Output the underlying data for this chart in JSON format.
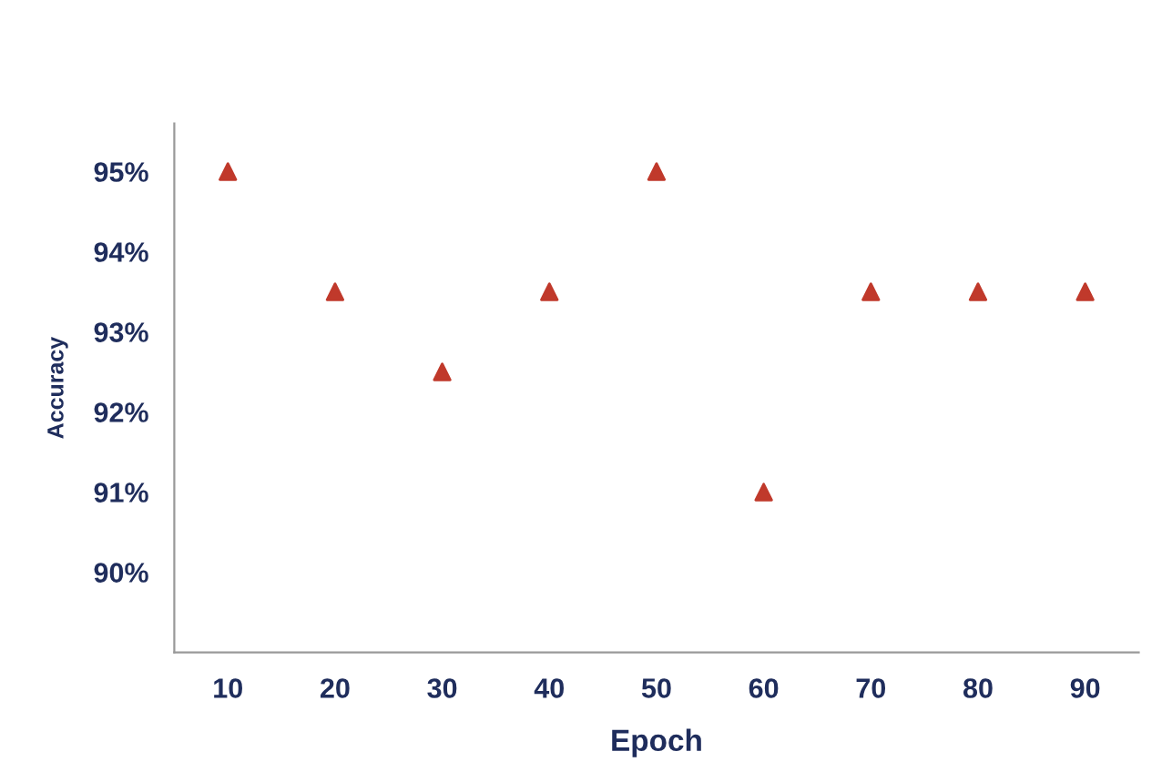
{
  "chart_data": {
    "type": "scatter",
    "xlabel": "Epoch",
    "ylabel": "Accuracy",
    "x": [
      10,
      20,
      30,
      40,
      50,
      60,
      70,
      80,
      90
    ],
    "series": [
      {
        "color": "#c0392b",
        "values": [
          95,
          93.5,
          92.5,
          93.5,
          95,
          91,
          93.5,
          93.5,
          93.5
        ]
      }
    ],
    "xlim": [
      5,
      95
    ],
    "xticks": [
      10,
      20,
      30,
      40,
      50,
      60,
      70,
      80,
      90
    ],
    "ylim": [
      89,
      95.6
    ],
    "yticks": [
      {
        "value": 90,
        "label": "90%"
      },
      {
        "value": 91,
        "label": "91%"
      },
      {
        "value": 92,
        "label": "92%"
      },
      {
        "value": 93,
        "label": "93%"
      },
      {
        "value": 94,
        "label": "94%"
      },
      {
        "value": 95,
        "label": "95%"
      }
    ],
    "marker": "triangle",
    "grid": false,
    "legend": false
  }
}
